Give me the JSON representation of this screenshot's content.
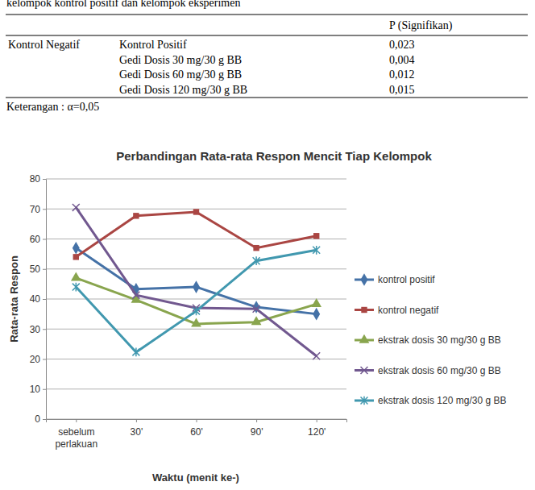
{
  "table": {
    "caption": "kelompok kontrol positif dan kelompok eksperimen",
    "header": "P (Signifikan)",
    "row_group": "Kontrol Negatif",
    "rows": [
      [
        "Kontrol Positif",
        "0,023"
      ],
      [
        "Gedi Dosis 30 mg/30 g BB",
        "0,004"
      ],
      [
        "Gedi Dosis 60 mg/30 g BB",
        "0,012"
      ],
      [
        "Gedi Dosis 120 mg/30 g BB",
        "0,015"
      ]
    ],
    "note": "Keterangan : α=0,05"
  },
  "chart_data": {
    "type": "line",
    "title": "Perbandingan Rata-rata Respon Mencit Tiap Kelompok",
    "x_label": "Waktu (menit ke-)",
    "y_label": "Rata-rata Respon",
    "categories": [
      "sebelum perlakuan",
      "30'",
      "60'",
      "90'",
      "120'"
    ],
    "ylim": [
      0,
      80
    ],
    "yticks": [
      0,
      10,
      20,
      30,
      40,
      50,
      60,
      70,
      80
    ],
    "grid": true,
    "legend": "right",
    "series": [
      {
        "name": "kontrol positif",
        "color": "#4572a7",
        "marker": "diamond",
        "values": [
          57,
          43.3,
          44,
          37.3,
          35
        ]
      },
      {
        "name": "kontrol negatif",
        "color": "#aa4643",
        "marker": "square",
        "values": [
          54,
          67.7,
          69,
          57,
          61
        ]
      },
      {
        "name": "ekstrak dosis 30 mg/30 g BB",
        "color": "#89a54e",
        "marker": "triangle",
        "values": [
          47,
          39.7,
          31.7,
          32.3,
          38.3
        ]
      },
      {
        "name": "ekstrak dosis 60 mg/30 g BB",
        "color": "#71588f",
        "marker": "x",
        "values": [
          70.5,
          41.3,
          37,
          36.7,
          21
        ]
      },
      {
        "name": "ekstrak dosis 120 mg/30 g BB",
        "color": "#4198af",
        "marker": "asterisk",
        "values": [
          44,
          22.3,
          36,
          52.7,
          56.3
        ]
      }
    ]
  }
}
